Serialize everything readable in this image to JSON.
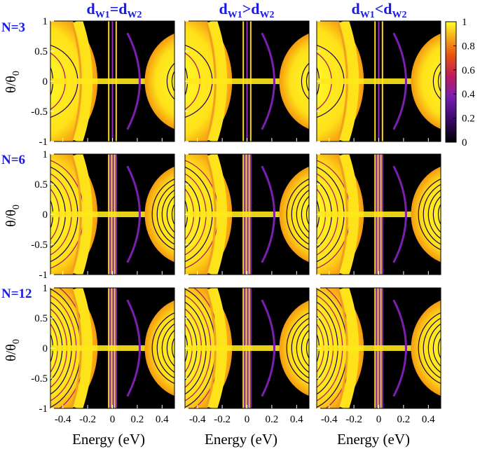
{
  "figure": {
    "column_headers": [
      {
        "base": "d",
        "sub1": "W1",
        "op": "=",
        "sub2": "W2"
      },
      {
        "base": "d",
        "sub1": "W1",
        "op": ">",
        "sub2": "W2"
      },
      {
        "base": "d",
        "sub1": "W1",
        "op": "<",
        "sub2": "W2"
      }
    ],
    "row_labels": [
      "N=3",
      "N=6",
      "N=12"
    ],
    "xlabel": "Energy (eV)",
    "ylabel_main": "θ/θ",
    "ylabel_sub": "0",
    "header_color": "#1a1ae6",
    "colormap": [
      "#000000",
      "#3c0a6e",
      "#7a1fb0",
      "#c01a5a",
      "#e8530f",
      "#f5a31a",
      "#ffff2a"
    ]
  },
  "chart_data": {
    "type": "heatmap",
    "grid_rows": 3,
    "grid_cols": 3,
    "x_ticks": [
      -0.4,
      -0.2,
      0,
      0.2,
      0.4
    ],
    "x_tick_labels": [
      "-0.4",
      "-0.2",
      "0",
      "0.2",
      "0.4"
    ],
    "xlim": [
      -0.5,
      0.5
    ],
    "y_ticks": [
      -1,
      -0.5,
      0,
      0.5,
      1
    ],
    "y_tick_labels": [
      "-1",
      "-0.5",
      "0",
      "0.5",
      "1"
    ],
    "ylim": [
      -1,
      1
    ],
    "colorbar": {
      "range": [
        0,
        1
      ],
      "ticks": [
        0,
        0.2,
        0.4,
        0.6,
        0.8,
        1
      ],
      "tick_labels": [
        "0",
        "0.2",
        "0.4",
        "0.6",
        "0.8",
        "1"
      ]
    },
    "panels": [
      {
        "row": "N=3",
        "col": "dW1=dW2",
        "fringes": 3
      },
      {
        "row": "N=3",
        "col": "dW1>dW2",
        "fringes": 3
      },
      {
        "row": "N=3",
        "col": "dW1<dW2",
        "fringes": 3
      },
      {
        "row": "N=6",
        "col": "dW1=dW2",
        "fringes": 6
      },
      {
        "row": "N=6",
        "col": "dW1>dW2",
        "fringes": 6
      },
      {
        "row": "N=6",
        "col": "dW1<dW2",
        "fringes": 6
      },
      {
        "row": "N=12",
        "col": "dW1=dW2",
        "fringes": 12
      },
      {
        "row": "N=12",
        "col": "dW1>dW2",
        "fringes": 12
      },
      {
        "row": "N=12",
        "col": "dW1<dW2",
        "fringes": 12
      }
    ]
  }
}
